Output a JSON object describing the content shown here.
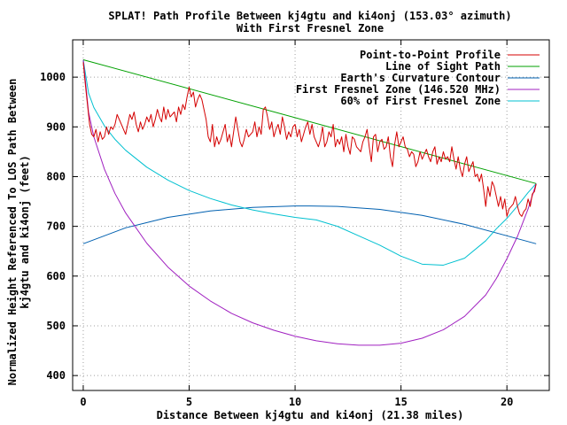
{
  "chart_data": {
    "type": "line",
    "title": "SPLAT! Path Profile Between kj4gtu and ki4onj (153.03° azimuth)",
    "subtitle": "With First Fresnel Zone",
    "xlabel": "Distance Between kj4gtu and ki4onj (21.38 miles)",
    "ylabel": "Normalized Height Referenced To LOS Path Between",
    "ylabel2": "kj4gtu and ki4onj (feet)",
    "xlim": [
      -0.5,
      22.0
    ],
    "ylim": [
      370,
      1075
    ],
    "x_ticks": [
      0,
      5,
      10,
      15,
      20
    ],
    "y_ticks": [
      400,
      500,
      600,
      700,
      800,
      900,
      1000
    ],
    "x_tick_labels": [
      "0",
      "5",
      "10",
      "15",
      "20"
    ],
    "y_tick_labels": [
      "400",
      "500",
      "600",
      "700",
      "800",
      "900",
      "1000"
    ],
    "grid": true,
    "legend_position": "top-right",
    "series": [
      {
        "name": "Point-to-Point Profile",
        "color": "#d40000",
        "x": [
          0,
          0.1,
          0.2,
          0.3,
          0.4,
          0.5,
          0.6,
          0.7,
          0.8,
          0.9,
          1.0,
          1.1,
          1.2,
          1.3,
          1.4,
          1.5,
          1.6,
          1.7,
          1.8,
          1.9,
          2.0,
          2.1,
          2.2,
          2.3,
          2.4,
          2.5,
          2.6,
          2.7,
          2.8,
          2.9,
          3.0,
          3.1,
          3.2,
          3.3,
          3.4,
          3.5,
          3.6,
          3.7,
          3.8,
          3.9,
          4.0,
          4.1,
          4.2,
          4.3,
          4.4,
          4.5,
          4.6,
          4.7,
          4.8,
          4.9,
          5.0,
          5.1,
          5.2,
          5.3,
          5.4,
          5.5,
          5.6,
          5.7,
          5.8,
          5.9,
          6.0,
          6.1,
          6.2,
          6.3,
          6.4,
          6.5,
          6.6,
          6.7,
          6.8,
          6.9,
          7.0,
          7.1,
          7.2,
          7.3,
          7.4,
          7.5,
          7.6,
          7.7,
          7.8,
          7.9,
          8.0,
          8.1,
          8.2,
          8.3,
          8.4,
          8.5,
          8.6,
          8.7,
          8.8,
          8.9,
          9.0,
          9.1,
          9.2,
          9.3,
          9.4,
          9.5,
          9.6,
          9.7,
          9.8,
          9.9,
          10.0,
          10.1,
          10.2,
          10.3,
          10.4,
          10.5,
          10.6,
          10.7,
          10.8,
          10.9,
          11.0,
          11.1,
          11.2,
          11.3,
          11.4,
          11.5,
          11.6,
          11.7,
          11.8,
          11.9,
          12.0,
          12.1,
          12.2,
          12.3,
          12.4,
          12.5,
          12.6,
          12.7,
          12.8,
          12.9,
          13.0,
          13.1,
          13.2,
          13.3,
          13.4,
          13.5,
          13.6,
          13.7,
          13.8,
          13.9,
          14.0,
          14.1,
          14.2,
          14.3,
          14.4,
          14.5,
          14.6,
          14.7,
          14.8,
          14.9,
          15.0,
          15.1,
          15.2,
          15.3,
          15.4,
          15.5,
          15.6,
          15.7,
          15.8,
          15.9,
          16.0,
          16.1,
          16.2,
          16.3,
          16.4,
          16.5,
          16.6,
          16.7,
          16.8,
          16.9,
          17.0,
          17.1,
          17.2,
          17.3,
          17.4,
          17.5,
          17.6,
          17.7,
          17.8,
          17.9,
          18.0,
          18.1,
          18.2,
          18.3,
          18.4,
          18.5,
          18.6,
          18.7,
          18.8,
          18.9,
          19.0,
          19.1,
          19.2,
          19.3,
          19.4,
          19.5,
          19.6,
          19.7,
          19.8,
          19.9,
          20.0,
          20.1,
          20.2,
          20.3,
          20.4,
          20.5,
          20.6,
          20.7,
          20.8,
          20.9,
          21.0,
          21.1,
          21.2,
          21.3,
          21.38
        ],
        "y": [
          1030,
          985,
          945,
          905,
          885,
          880,
          895,
          870,
          890,
          875,
          880,
          900,
          885,
          900,
          895,
          905,
          925,
          915,
          905,
          895,
          885,
          905,
          925,
          915,
          930,
          905,
          890,
          910,
          895,
          905,
          920,
          910,
          925,
          900,
          915,
          935,
          920,
          910,
          940,
          915,
          935,
          920,
          925,
          930,
          910,
          940,
          925,
          945,
          935,
          960,
          980,
          960,
          970,
          940,
          955,
          965,
          955,
          935,
          915,
          880,
          870,
          905,
          860,
          880,
          865,
          875,
          890,
          905,
          870,
          885,
          860,
          890,
          920,
          895,
          870,
          860,
          875,
          895,
          880,
          885,
          890,
          910,
          880,
          900,
          885,
          935,
          940,
          920,
          895,
          910,
          880,
          895,
          905,
          885,
          920,
          900,
          875,
          890,
          880,
          900,
          905,
          880,
          895,
          870,
          885,
          900,
          910,
          885,
          905,
          880,
          870,
          860,
          875,
          900,
          860,
          870,
          890,
          880,
          905,
          860,
          875,
          865,
          880,
          850,
          885,
          860,
          845,
          880,
          875,
          860,
          855,
          850,
          870,
          880,
          895,
          860,
          830,
          880,
          885,
          850,
          870,
          875,
          855,
          860,
          880,
          840,
          820,
          865,
          890,
          860,
          870,
          880,
          860,
          855,
          840,
          850,
          845,
          820,
          830,
          850,
          835,
          845,
          855,
          840,
          830,
          850,
          860,
          825,
          840,
          830,
          850,
          835,
          840,
          830,
          860,
          835,
          815,
          840,
          815,
          800,
          825,
          840,
          810,
          820,
          830,
          800,
          805,
          790,
          805,
          775,
          740,
          780,
          760,
          790,
          780,
          760,
          740,
          760,
          735,
          755,
          720,
          735,
          740,
          745,
          760,
          740,
          725,
          720,
          730,
          735,
          755,
          740,
          765,
          770,
          785
        ],
        "sample_note": ""
      },
      {
        "name": "Line of Sight Path",
        "color": "#00a000",
        "x": [
          0,
          21.38
        ],
        "y": [
          1035,
          786
        ]
      },
      {
        "name": "Earth's Curvature Contour",
        "color": "#0060b0",
        "x": [
          0,
          2,
          4,
          6,
          8,
          10,
          10.69,
          12,
          14,
          16,
          18,
          20,
          21.38
        ],
        "y": [
          665,
          697,
          718,
          731,
          738,
          741,
          741,
          740,
          734,
          722,
          704,
          681,
          665
        ]
      },
      {
        "name": "First Fresnel Zone (146.520 MHz)",
        "color": "#a020c0",
        "x": [
          0,
          0.25,
          0.5,
          1,
          1.5,
          2,
          3,
          4,
          5,
          6,
          7,
          8,
          9,
          10,
          11,
          12,
          13,
          14,
          15,
          16,
          17,
          18,
          19,
          19.5,
          20,
          20.5,
          21,
          21.38
        ],
        "y": [
          1035,
          930,
          880,
          815,
          766,
          727,
          666,
          618,
          580,
          550,
          525,
          506,
          491,
          479,
          470,
          464,
          461,
          461,
          465,
          475,
          492,
          519,
          562,
          595,
          635,
          680,
          735,
          786
        ]
      },
      {
        "name": "60% of First Fresnel Zone",
        "color": "#00c0d0",
        "x": [
          0,
          0.25,
          0.5,
          1,
          1.5,
          2,
          3,
          4,
          5,
          6,
          7,
          8,
          9,
          10,
          11,
          12,
          13,
          14,
          15,
          16,
          17,
          18,
          19,
          19.5,
          20,
          20.5,
          21,
          21.38
        ],
        "y": [
          1035,
          968,
          939,
          902,
          875,
          853,
          819,
          793,
          772,
          756,
          743,
          733,
          725,
          718,
          713,
          700,
          681,
          662,
          640,
          624,
          622,
          636,
          671,
          695,
          716,
          741,
          768,
          786
        ]
      }
    ]
  }
}
